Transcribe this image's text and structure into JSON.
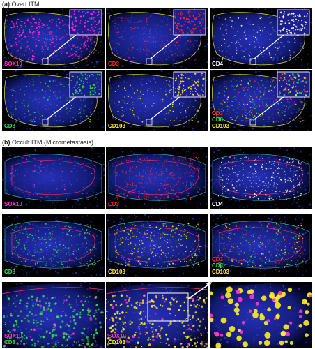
{
  "sections": {
    "a": {
      "letter": "(a)",
      "title": "Overt ITM"
    },
    "b": {
      "letter": "(b)",
      "title": "Occult ITM (Micrometastasis)"
    }
  },
  "colors": {
    "sox10": "#ff33cc",
    "cd3": "#ff2a2a",
    "cd4": "#ffffff",
    "cd8": "#33dd55",
    "cd103": "#ffee22",
    "dapi": "#1a24a8",
    "outline_a": "#c9c94a",
    "outline_b": "#e0306a",
    "outline_b_inner": "#3aa0c8"
  },
  "panels": {
    "a1": {
      "labels": [
        {
          "text": "SOX10",
          "color": "#ff33cc"
        }
      ]
    },
    "a2": {
      "labels": [
        {
          "text": "CD3",
          "color": "#ff2a2a"
        }
      ]
    },
    "a3": {
      "labels": [
        {
          "text": "CD4",
          "color": "#ffffff"
        }
      ]
    },
    "a4": {
      "labels": [
        {
          "text": "CD8",
          "color": "#33dd55"
        }
      ]
    },
    "a5": {
      "labels": [
        {
          "text": "CD103",
          "color": "#ffee22"
        }
      ]
    },
    "a6": {
      "labels": [
        {
          "text": "CD3",
          "color": "#ff2a2a"
        },
        {
          "text": "CD8",
          "color": "#33dd55"
        },
        {
          "text": "CD103",
          "color": "#ffee22"
        }
      ]
    },
    "b1": {
      "labels": [
        {
          "text": "SOX10",
          "color": "#ff33cc"
        }
      ]
    },
    "b2": {
      "labels": [
        {
          "text": "CD3",
          "color": "#ff2a2a"
        }
      ]
    },
    "b3": {
      "labels": [
        {
          "text": "CD4",
          "color": "#ffffff"
        }
      ]
    },
    "b4": {
      "labels": [
        {
          "text": "CD8",
          "color": "#33dd55"
        }
      ]
    },
    "b5": {
      "labels": [
        {
          "text": "CD103",
          "color": "#ffee22"
        }
      ]
    },
    "b6": {
      "labels": [
        {
          "text": "CD3",
          "color": "#ff2a2a"
        },
        {
          "text": "CD8",
          "color": "#33dd55"
        },
        {
          "text": "CD103",
          "color": "#ffee22"
        }
      ]
    },
    "b7": {
      "labels": [
        {
          "text": "SOX10",
          "color": "#ff33cc"
        },
        {
          "text": "CD8",
          "color": "#33dd55"
        }
      ]
    },
    "b8": {
      "labels": [
        {
          "text": "SOX10",
          "color": "#ff33cc"
        },
        {
          "text": "CD103",
          "color": "#ffee22"
        }
      ]
    },
    "b9": {
      "labels": []
    }
  }
}
